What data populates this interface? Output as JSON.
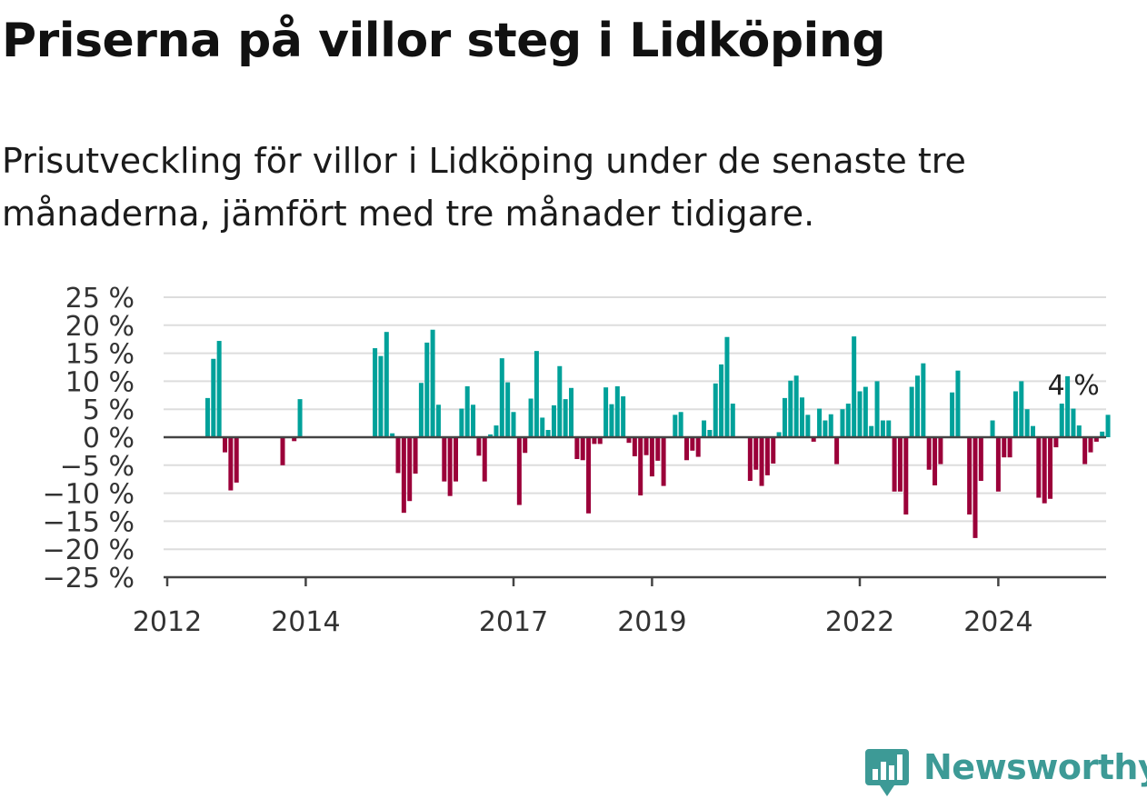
{
  "title": "Priserna på villor steg i Lidköping",
  "subtitle": "Prisutveckling för villor i Lidköping under de senaste tre månaderna, jämfört med tre månader tidigare.",
  "brand": {
    "name": "Newsworthy",
    "color": "#3d9a96",
    "icon": "bar-chart-pin-icon"
  },
  "colors": {
    "positive": "#00a19a",
    "negative": "#9b0039",
    "grid": "#dddddd",
    "axis": "#444444",
    "text": "#333333"
  },
  "chart_data": {
    "type": "bar",
    "ylim": [
      -25,
      25
    ],
    "yticks": [
      25,
      20,
      15,
      10,
      5,
      0,
      -5,
      -10,
      -15,
      -20,
      -25
    ],
    "ytick_labels": [
      "25 %",
      "20 %",
      "15 %",
      "10 %",
      "5 %",
      "0 %",
      "−5 %",
      "−10 %",
      "−15 %",
      "−20 %",
      "−25 %"
    ],
    "x_start": "2012-01",
    "xticks": [
      {
        "date": "2012-01",
        "label": "2012"
      },
      {
        "date": "2014-01",
        "label": "2014"
      },
      {
        "date": "2017-01",
        "label": "2017"
      },
      {
        "date": "2019-01",
        "label": "2019"
      },
      {
        "date": "2022-01",
        "label": "2022"
      },
      {
        "date": "2024-01",
        "label": "2024"
      }
    ],
    "grid": true,
    "annotation": {
      "text": "4 %",
      "date": "2024-09"
    },
    "series": [
      {
        "start": "2012-01",
        "values": [
          null,
          null,
          null,
          null,
          null,
          null,
          null,
          7,
          14,
          17.2,
          -2.7,
          -9.5,
          -8.1,
          null,
          null,
          null,
          null,
          null,
          null,
          null,
          -5,
          null,
          -0.7,
          6.8,
          null,
          null,
          null,
          null,
          null,
          null,
          null,
          null,
          null,
          null,
          null,
          null,
          15.9,
          14.5,
          18.8,
          0.7,
          -6.4,
          -13.5,
          -11.4,
          -6.5,
          9.7,
          16.9,
          19.2,
          5.8,
          -7.9,
          -10.5,
          -7.9,
          5.1,
          9.1,
          5.8,
          -3.3,
          -7.9,
          0.5,
          2.1,
          14.1,
          9.8,
          4.5,
          -12.1,
          -2.8,
          6.9,
          15.4,
          3.5,
          1.3,
          5.7,
          12.7,
          6.8,
          8.8,
          -3.9,
          -4.1,
          -13.6,
          -1.2,
          -1.2,
          8.9,
          5.9,
          9.1,
          7.3,
          -1,
          -3.4,
          -10.4,
          -3.2,
          -7,
          -4.2,
          -8.7,
          null,
          4,
          4.5,
          -4.1,
          -2.4,
          -3.5,
          3,
          1.3,
          9.6,
          13,
          17.9,
          6,
          null,
          null,
          -7.8,
          -5.8,
          -8.7,
          -6.8,
          -4.7,
          0.9,
          7,
          10.1,
          11,
          7.1,
          4,
          -0.8,
          5.1,
          3,
          4.1,
          -4.8,
          5,
          6,
          18,
          8.2,
          9,
          2,
          10,
          3,
          3,
          -9.7,
          -9.7,
          -13.8,
          9,
          11,
          13.2,
          -5.8,
          -8.6,
          -4.8,
          null,
          8,
          11.9,
          null,
          -13.8,
          -18,
          -7.8,
          null,
          3,
          -9.7,
          -3.6,
          -3.6,
          8.2,
          10,
          5,
          2,
          -10.8,
          -11.8,
          -11,
          -1.8,
          6,
          10.9,
          5.1,
          2.1,
          -4.8,
          -2.7,
          -0.8,
          1,
          4
        ]
      }
    ]
  }
}
